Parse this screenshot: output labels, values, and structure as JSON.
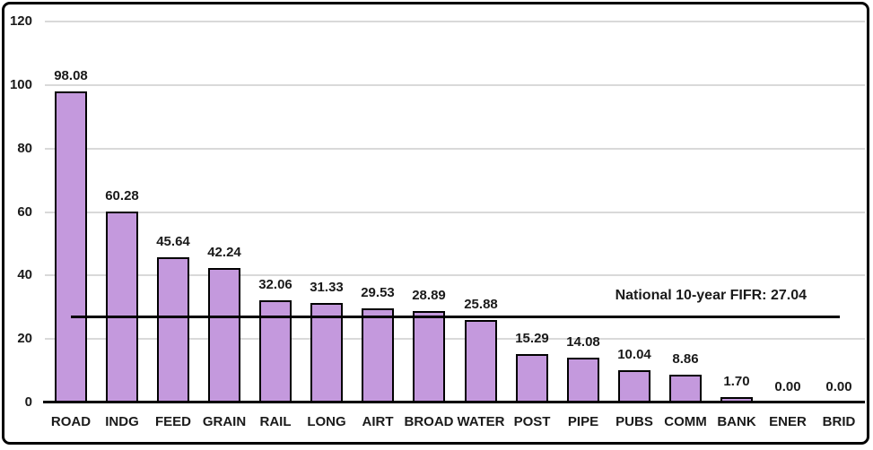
{
  "chart_data": {
    "type": "bar",
    "title": "",
    "xlabel": "",
    "ylabel": "",
    "categories": [
      "ROAD",
      "INDG",
      "FEED",
      "GRAIN",
      "RAIL",
      "LONG",
      "AIRT",
      "BROAD",
      "WATER",
      "POST",
      "PIPE",
      "PUBS",
      "COMM",
      "BANK",
      "ENER",
      "BRID"
    ],
    "values": [
      98.08,
      60.28,
      45.64,
      42.24,
      32.06,
      31.33,
      29.53,
      28.89,
      25.88,
      15.29,
      14.08,
      10.04,
      8.86,
      1.7,
      0.0,
      0.0
    ],
    "value_labels": [
      "98.08",
      "60.28",
      "45.64",
      "42.24",
      "32.06",
      "31.33",
      "29.53",
      "28.89",
      "25.88",
      "15.29",
      "14.08",
      "10.04",
      "8.86",
      "1.70",
      "0.00",
      "0.00"
    ],
    "ylim": [
      0,
      120
    ],
    "ytick_step": 20,
    "ytick_labels": [
      "0",
      "20",
      "40",
      "60",
      "80",
      "100",
      "120"
    ],
    "grid": true,
    "legend": false,
    "ref_line": {
      "value": 27.04,
      "label": "National 10-year FIFR: 27.04"
    },
    "colors": {
      "bar_fill": "#c499dd",
      "bar_border": "#000000",
      "gridline": "#d9d9d9",
      "axis_line": "#000000",
      "ref_line": "#000000",
      "text": "#1a1a1a",
      "frame_border": "#000000",
      "background": "#ffffff"
    }
  }
}
